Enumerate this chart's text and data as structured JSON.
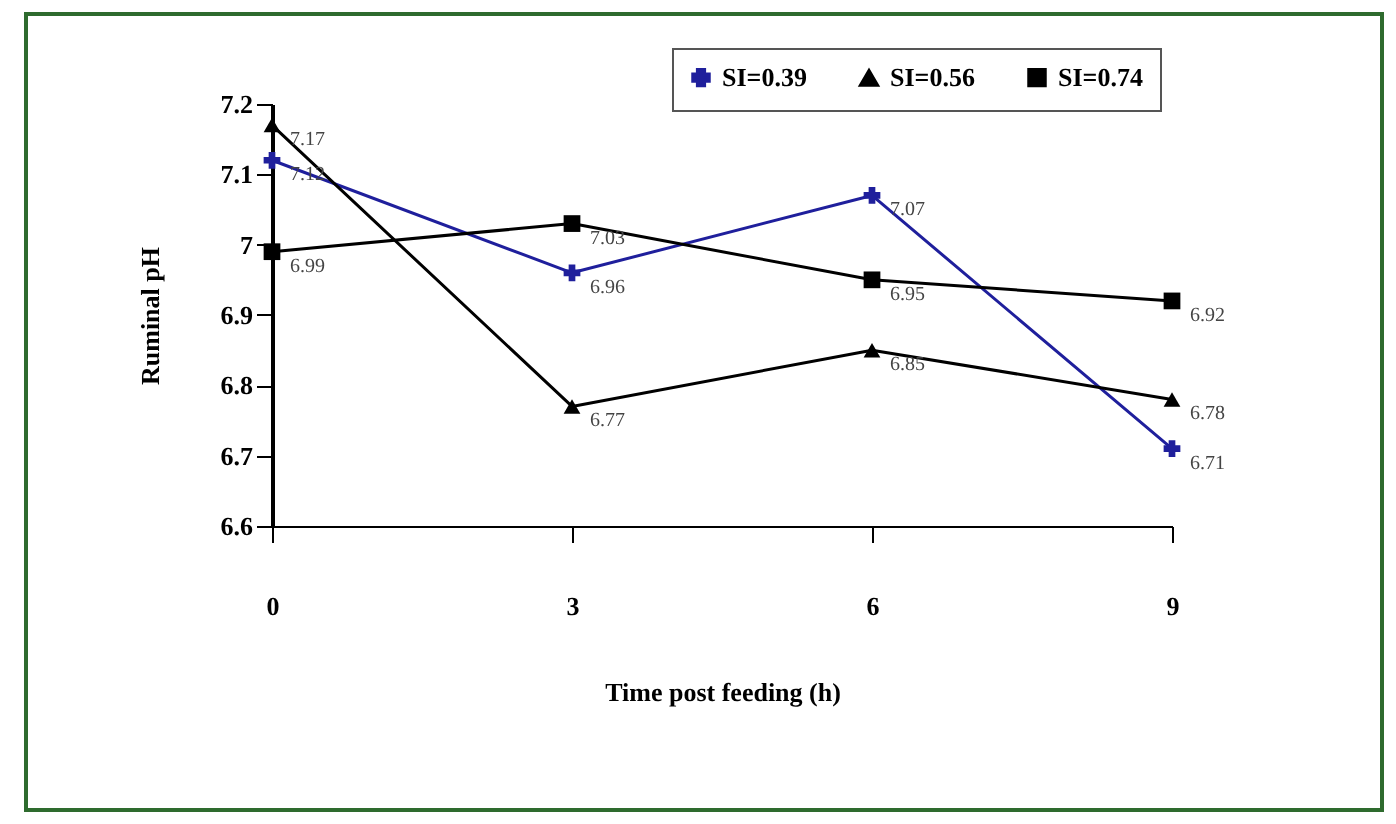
{
  "chart_data": {
    "type": "line",
    "xlabel": "Time post feeding   (h)",
    "ylabel": "Ruminal  pH",
    "categories": [
      "0",
      "3",
      "6",
      "9"
    ],
    "series": [
      {
        "name": "SI=0.39",
        "color": "#1f1f9c",
        "marker": "cross",
        "values": [
          7.12,
          6.96,
          7.07,
          6.71
        ]
      },
      {
        "name": "SI=0.56",
        "color": "#000000",
        "marker": "triangle",
        "values": [
          7.17,
          6.77,
          6.85,
          6.78
        ]
      },
      {
        "name": "SI=0.74",
        "color": "#000000",
        "marker": "square",
        "values": [
          6.99,
          7.03,
          6.95,
          6.92
        ]
      }
    ],
    "ylim": [
      6.6,
      7.2
    ],
    "yticks": [
      6.6,
      6.7,
      6.8,
      6.9,
      7,
      7.1,
      7.2
    ],
    "data_labels": true,
    "legend": "top right",
    "grid": false
  }
}
